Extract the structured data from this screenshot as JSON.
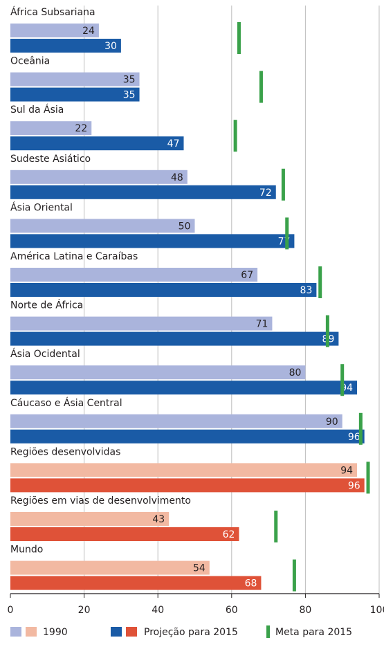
{
  "chart_data": {
    "type": "bar",
    "orientation": "horizontal",
    "title": "",
    "xlabel": "",
    "ylabel": "",
    "xlim": [
      0,
      100
    ],
    "xticks": [
      0,
      20,
      40,
      60,
      80,
      100
    ],
    "grid": true,
    "legend_position": "bottom",
    "categories": [
      "África Subsariana",
      "Oceânia",
      "Sul da Ásia",
      "Sudeste Asiático",
      "Ásia Oriental",
      "América Latina e Caraíbas",
      "Norte de África",
      "Ásia Ocidental",
      "Cáucaso e Ásia Central",
      "Regiões desenvolvidas",
      "Regiões em vias de desenvolvimento",
      "Mundo"
    ],
    "groups": [
      "regional",
      "regional",
      "regional",
      "regional",
      "regional",
      "regional",
      "regional",
      "regional",
      "regional",
      "aggregate",
      "aggregate",
      "aggregate"
    ],
    "series": [
      {
        "name": "1990",
        "values": [
          24,
          35,
          22,
          48,
          50,
          67,
          71,
          80,
          90,
          94,
          43,
          54
        ]
      },
      {
        "name": "Projeção para 2015",
        "values": [
          30,
          35,
          47,
          72,
          77,
          83,
          89,
          94,
          96,
          96,
          62,
          68
        ]
      },
      {
        "name": "Meta para 2015",
        "values": [
          62,
          68,
          61,
          74,
          75,
          84,
          86,
          90,
          95,
          97,
          72,
          77
        ]
      }
    ],
    "colors": {
      "series_1990_regional": "#aab4dc",
      "series_2015_regional": "#1a5ba6",
      "series_1990_aggregate": "#f2b9a2",
      "series_2015_aggregate": "#df5238",
      "target": "#3aa14a",
      "gridline": "#bdbdbd",
      "axis": "#231f20",
      "label_on_light": "#231f20",
      "label_on_dark": "#ffffff"
    }
  }
}
